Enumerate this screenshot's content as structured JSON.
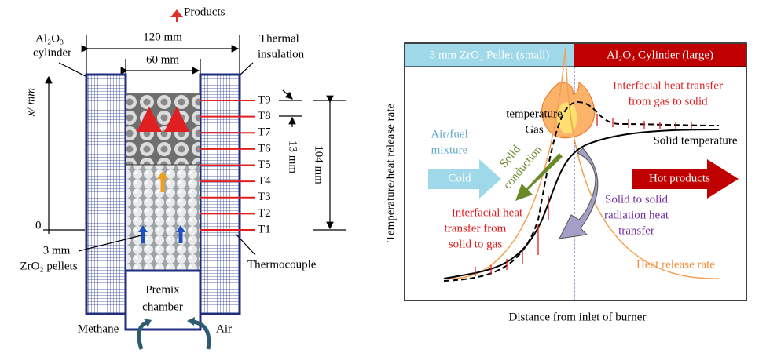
{
  "left": {
    "products": "Products",
    "cylinder": [
      "Al₂O₃",
      "cylinder"
    ],
    "outer_width": "120 mm",
    "inner_width": "60 mm",
    "insulation": [
      "Thermal",
      "insulation"
    ],
    "x_axis": "x/ mm",
    "zero": "0",
    "thermocouples": [
      "T9",
      "T8",
      "T7",
      "T6",
      "T5",
      "T4",
      "T3",
      "T2",
      "T1"
    ],
    "gap": "13 mm",
    "height": "104 mm",
    "pellets": [
      "3 mm",
      "ZrO₂ pellets"
    ],
    "thermocouple": "Thermocouple",
    "premix": [
      "Premix",
      "chamber"
    ],
    "methane": "Methane",
    "air": "Air"
  },
  "right": {
    "zone_small": "3 mm ZrO₂ Pellet (small)",
    "zone_large": "Al₂O₃ Cylinder (large)",
    "y_axis": "Temperature/heat release rate",
    "x_axis": "Distance from inlet of burner",
    "gas_temperature": [
      "Gas",
      "temperature"
    ],
    "gas_to_solid": [
      "Interfacial heat transfer",
      "from gas to solid"
    ],
    "solid_temperature": "Solid temperature",
    "mixture": [
      "Air/fuel",
      "mixture"
    ],
    "cold": "Cold",
    "conduction": [
      "Solid",
      "conduction"
    ],
    "hot": "Hot products",
    "radiation": [
      "Solid to solid",
      "radiation heat",
      "transfer"
    ],
    "solid_to_gas": [
      "Interfacial heat",
      "transfer from",
      "solid to gas"
    ],
    "heat_release": "Heat release rate"
  }
}
